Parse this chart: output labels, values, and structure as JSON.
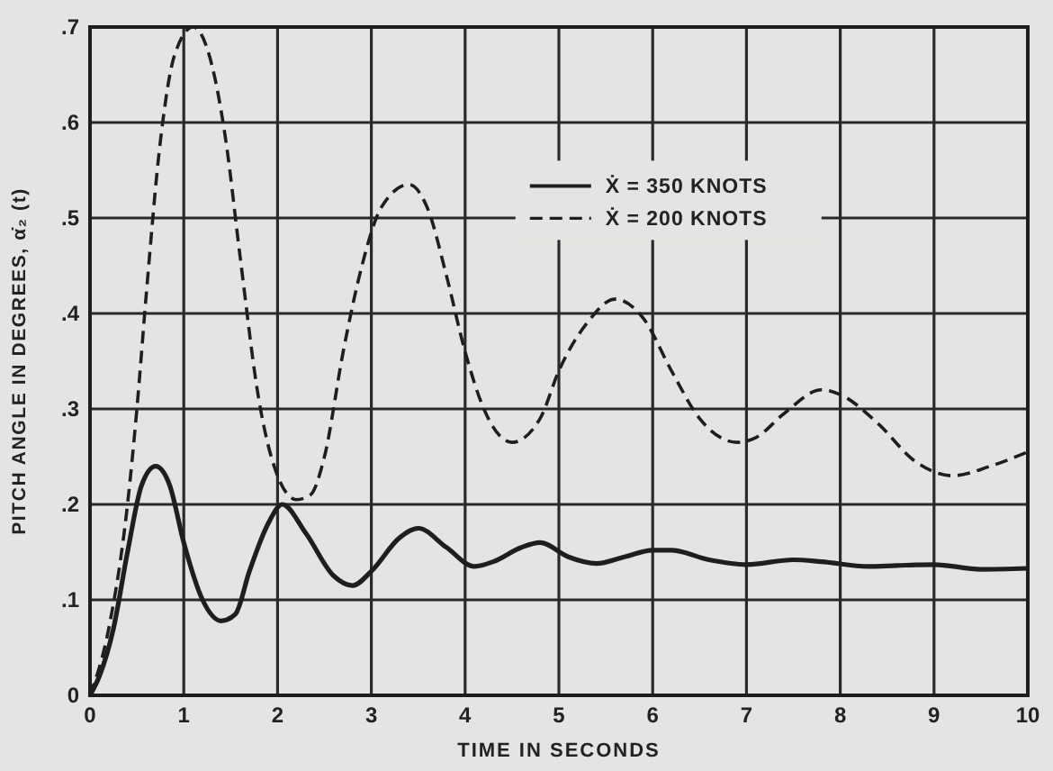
{
  "chart_data": {
    "type": "line",
    "xlabel": "TIME IN SECONDS",
    "ylabel": "PITCH ANGLE IN DEGREES, α̇₂ (t)",
    "xlim": [
      0,
      10
    ],
    "ylim": [
      0,
      0.7
    ],
    "xticks": [
      0,
      1,
      2,
      3,
      4,
      5,
      6,
      7,
      8,
      9,
      10
    ],
    "yticks": [
      0,
      {
        "value": 0.1,
        "label": ".1"
      },
      {
        "value": 0.2,
        "label": ".2"
      },
      {
        "value": 0.3,
        "label": ".3"
      },
      {
        "value": 0.4,
        "label": ".4"
      },
      {
        "value": 0.5,
        "label": ".5"
      },
      {
        "value": 0.6,
        "label": ".6"
      },
      {
        "value": 0.7,
        "label": ".7"
      }
    ],
    "grid": true,
    "legend": "top right",
    "series": [
      {
        "name": "Ẋ = 350 KNOTS",
        "color": "#1e1e1e",
        "line_style": "solid",
        "x": [
          0,
          0.1,
          0.25,
          0.4,
          0.55,
          0.7,
          0.85,
          1.0,
          1.2,
          1.4,
          1.55,
          1.7,
          1.9,
          2.05,
          2.3,
          2.6,
          2.8,
          3.0,
          3.3,
          3.5,
          3.8,
          4.1,
          4.3,
          4.6,
          4.8,
          5.1,
          5.4,
          5.7,
          6.0,
          6.2,
          6.6,
          7.0,
          7.5,
          7.8,
          8.3,
          8.6,
          9.0,
          9.5,
          10
        ],
        "values": [
          0,
          0.02,
          0.07,
          0.15,
          0.22,
          0.24,
          0.22,
          0.16,
          0.1,
          0.078,
          0.085,
          0.13,
          0.18,
          0.2,
          0.17,
          0.125,
          0.115,
          0.13,
          0.165,
          0.175,
          0.155,
          0.135,
          0.14,
          0.155,
          0.16,
          0.145,
          0.138,
          0.145,
          0.152,
          0.152,
          0.142,
          0.137,
          0.142,
          0.14,
          0.135,
          0.136,
          0.137,
          0.132,
          0.133
        ]
      },
      {
        "name": "Ẋ = 200 KNOTS",
        "color": "#1e1e1e",
        "line_style": "dashed",
        "x": [
          0,
          0.2,
          0.4,
          0.5,
          0.6,
          0.75,
          0.9,
          1.1,
          1.3,
          1.45,
          1.6,
          1.8,
          2.0,
          2.2,
          2.35,
          2.5,
          2.7,
          2.9,
          3.1,
          3.4,
          3.6,
          3.8,
          4.0,
          4.2,
          4.5,
          4.8,
          5.0,
          5.3,
          5.6,
          5.9,
          6.2,
          6.5,
          6.9,
          7.1,
          7.4,
          7.8,
          8.0,
          8.4,
          8.8,
          9.2,
          9.6,
          10
        ],
        "values": [
          0,
          0.07,
          0.2,
          0.3,
          0.42,
          0.58,
          0.67,
          0.7,
          0.66,
          0.58,
          0.46,
          0.31,
          0.23,
          0.205,
          0.21,
          0.25,
          0.36,
          0.45,
          0.51,
          0.535,
          0.51,
          0.44,
          0.36,
          0.3,
          0.265,
          0.29,
          0.34,
          0.39,
          0.415,
          0.395,
          0.34,
          0.29,
          0.265,
          0.27,
          0.295,
          0.32,
          0.315,
          0.285,
          0.245,
          0.23,
          0.24,
          0.255
        ]
      }
    ]
  }
}
